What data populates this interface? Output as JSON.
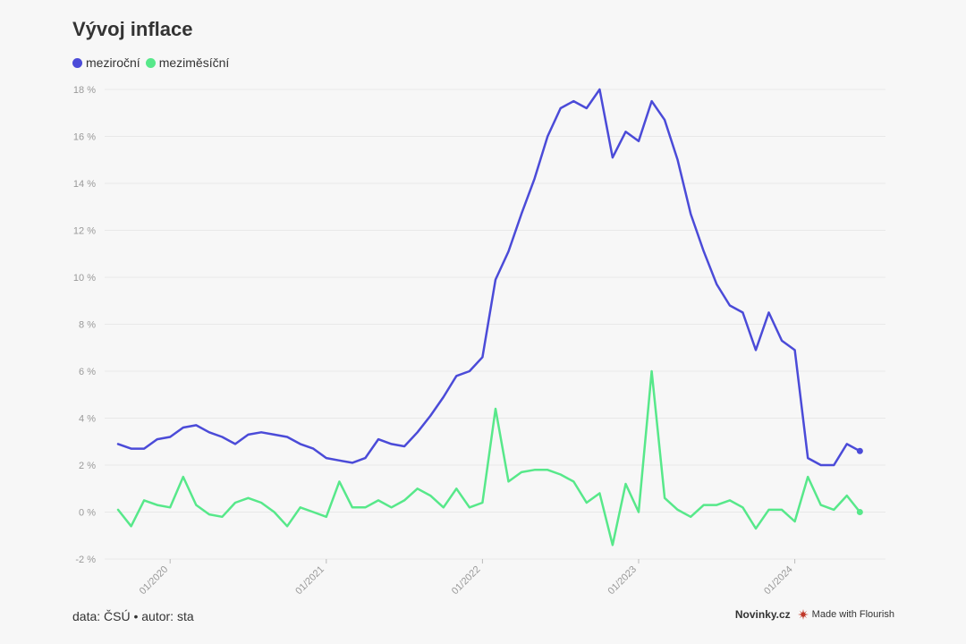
{
  "title": "Vývoj inflace",
  "legend": [
    {
      "label": "meziroční",
      "color": "#4b4bd8"
    },
    {
      "label": "meziměsíční",
      "color": "#57e88a"
    }
  ],
  "footer": {
    "source": "data: ČSÚ • autor: sta",
    "brand": "Novinky.cz",
    "flourish": "Made with Flourish"
  },
  "chart_data": {
    "type": "line",
    "title": "Vývoj inflace",
    "xlabel": "",
    "ylabel": "",
    "ylim": [
      -2,
      18
    ],
    "yticks": [
      -2,
      0,
      2,
      4,
      6,
      8,
      10,
      12,
      14,
      16,
      18
    ],
    "ytick_labels": [
      "-2 %",
      "0 %",
      "2 %",
      "4 %",
      "6 %",
      "8 %",
      "10 %",
      "12 %",
      "14 %",
      "16 %",
      "18 %"
    ],
    "x_start": "2019-09",
    "xtick_labels": [
      "01/2020",
      "01/2021",
      "01/2022",
      "01/2023",
      "01/2024"
    ],
    "grid": true,
    "legend_position": "top-left",
    "series": [
      {
        "name": "meziroční",
        "color": "#4b4bd8",
        "values": [
          2.9,
          2.7,
          2.7,
          3.1,
          3.2,
          3.6,
          3.7,
          3.4,
          3.2,
          2.9,
          3.3,
          3.4,
          3.3,
          3.2,
          2.9,
          2.7,
          2.3,
          2.2,
          2.1,
          2.3,
          3.1,
          2.9,
          2.8,
          3.4,
          4.1,
          4.9,
          5.8,
          6.0,
          6.6,
          9.9,
          11.1,
          12.7,
          14.2,
          16.0,
          17.2,
          17.5,
          17.2,
          18.0,
          15.1,
          16.2,
          15.8,
          17.5,
          16.7,
          15.0,
          12.7,
          11.1,
          9.7,
          8.8,
          8.5,
          6.9,
          8.5,
          7.3,
          6.9,
          2.3,
          2.0,
          2.0,
          2.9,
          2.6
        ]
      },
      {
        "name": "meziměsíční",
        "color": "#57e88a",
        "values": [
          0.1,
          -0.6,
          0.5,
          0.3,
          0.2,
          1.5,
          0.3,
          -0.1,
          -0.2,
          0.4,
          0.6,
          0.4,
          0.0,
          -0.6,
          0.2,
          0.0,
          -0.2,
          1.3,
          0.2,
          0.2,
          0.5,
          0.2,
          0.5,
          1.0,
          0.7,
          0.2,
          1.0,
          0.2,
          0.4,
          4.4,
          1.3,
          1.7,
          1.8,
          1.8,
          1.6,
          1.3,
          0.4,
          0.8,
          -1.4,
          1.2,
          0.0,
          6.0,
          0.6,
          0.1,
          -0.2,
          0.3,
          0.3,
          0.5,
          0.2,
          -0.7,
          0.1,
          0.1,
          -0.4,
          1.5,
          0.3,
          0.1,
          0.7,
          0.0
        ]
      }
    ]
  }
}
